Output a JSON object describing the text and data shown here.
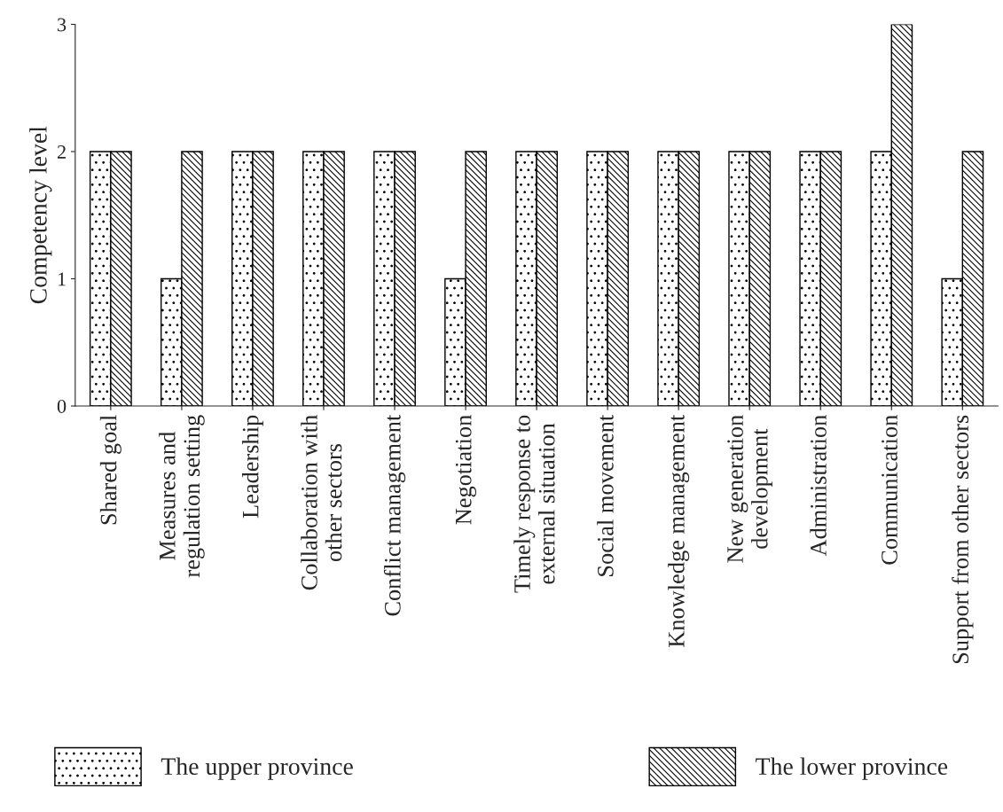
{
  "chart_data": {
    "type": "bar",
    "ylabel": "Competency level",
    "categories": [
      "Shared goal",
      "Measures and\nregulation setting",
      "Leadership",
      "Collaboration with\nother sectors",
      "Conflict management",
      "Negotiation",
      "Timely response to\nexternal situation",
      "Social movement",
      "Knowledge management",
      "New generation\ndevelopment",
      "Administration",
      "Communication",
      "Support from other sectors"
    ],
    "series": [
      {
        "name": "The upper province",
        "color": "#000000",
        "values": [
          2,
          1,
          2,
          2,
          2,
          1,
          2,
          2,
          2,
          2,
          2,
          2,
          1
        ]
      },
      {
        "name": "The lower province",
        "color": "#000000",
        "values": [
          2,
          2,
          2,
          2,
          2,
          2,
          2,
          2,
          2,
          2,
          2,
          3,
          2
        ]
      }
    ],
    "ylim": [
      0,
      3
    ],
    "yticks": [
      0,
      1,
      2,
      3
    ],
    "grid": false,
    "legend": "bottom"
  }
}
